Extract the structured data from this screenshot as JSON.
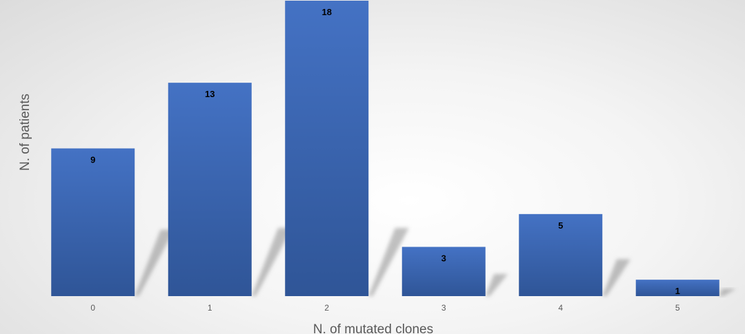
{
  "chart_data": {
    "type": "bar",
    "xlabel": "N. of mutated clones",
    "ylabel": "N. of patients",
    "categories": [
      "0",
      "1",
      "2",
      "3",
      "4",
      "5"
    ],
    "values": [
      9,
      13,
      18,
      3,
      5,
      1
    ],
    "ylim": [
      0,
      18
    ],
    "grid": false,
    "legend": "none",
    "bar_color": "#4472c4",
    "bar_color_dark": "#2f5597",
    "data_labels": true
  }
}
